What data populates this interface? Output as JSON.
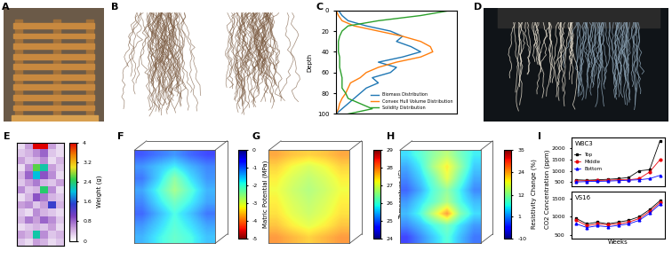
{
  "panel_labels": [
    "A",
    "B",
    "C",
    "D",
    "E",
    "F",
    "G",
    "H",
    "I"
  ],
  "chart_data": [
    {
      "type": "line",
      "ylabel": "Depth",
      "y": [
        0,
        5,
        10,
        15,
        20,
        25,
        30,
        35,
        40,
        45,
        50,
        55,
        60,
        65,
        70,
        75,
        80,
        85,
        90,
        95,
        100
      ],
      "ylim": [
        100,
        0
      ],
      "yticks": [
        0,
        20,
        40,
        60,
        80,
        100
      ],
      "xlim": [
        0,
        1
      ],
      "tick_labels": "y",
      "legend": "lower right",
      "series": [
        {
          "name": "Biomass Distribution",
          "color": "#1f77b4",
          "values": [
            0.02,
            0.05,
            0.1,
            0.25,
            0.45,
            0.55,
            0.5,
            0.62,
            0.7,
            0.55,
            0.35,
            0.5,
            0.45,
            0.3,
            0.35,
            0.25,
            0.2,
            0.15,
            0.1,
            0.05,
            0.0
          ]
        },
        {
          "name": "Convex Hull Volume Distribution",
          "color": "#ff7f0e",
          "values": [
            0.0,
            0.02,
            0.05,
            0.15,
            0.35,
            0.55,
            0.7,
            0.78,
            0.8,
            0.7,
            0.5,
            0.35,
            0.25,
            0.2,
            0.12,
            0.1,
            0.08,
            0.05,
            0.03,
            0.02,
            0.0
          ]
        },
        {
          "name": "Solidity Distribution",
          "color": "#2ca02c",
          "values": [
            0.95,
            0.7,
            0.35,
            0.1,
            0.05,
            0.03,
            0.02,
            0.02,
            0.02,
            0.03,
            0.03,
            0.03,
            0.04,
            0.05,
            0.05,
            0.05,
            0.08,
            0.1,
            0.2,
            0.3,
            0.1
          ]
        }
      ]
    },
    {
      "type": "heatmap",
      "cells": [
        [
          0.2,
          0.5,
          4.0,
          4.0,
          0.5,
          0.2
        ],
        [
          0.3,
          0.4,
          0.6,
          0.8,
          0.3,
          0.2
        ],
        [
          0.5,
          0.3,
          0.4,
          0.6,
          0.2,
          0.4
        ],
        [
          0.2,
          0.6,
          2.6,
          2.2,
          0.5,
          0.3
        ],
        [
          0.4,
          0.8,
          2.0,
          0.9,
          0.6,
          0.2
        ],
        [
          0.3,
          0.5,
          0.7,
          0.4,
          0.3,
          0.5
        ],
        [
          0.6,
          0.3,
          0.4,
          2.4,
          0.6,
          0.2
        ],
        [
          0.2,
          0.4,
          0.9,
          0.7,
          0.4,
          0.3
        ],
        [
          0.5,
          0.6,
          0.3,
          0.5,
          1.4,
          0.4
        ],
        [
          0.3,
          0.2,
          0.6,
          0.4,
          0.3,
          0.2
        ],
        [
          0.4,
          0.7,
          0.5,
          0.8,
          0.6,
          0.3
        ],
        [
          0.2,
          0.3,
          0.4,
          0.3,
          0.5,
          0.2
        ],
        [
          0.5,
          0.4,
          2.2,
          0.6,
          0.3,
          0.4
        ],
        [
          0.3,
          0.2,
          0.5,
          0.4,
          0.2,
          0.3
        ]
      ],
      "colorbar": {
        "label": "Weight (g)",
        "range": [
          0,
          4
        ],
        "ticks": [
          0,
          0.8,
          1.6,
          2.4,
          3.2,
          4
        ]
      }
    },
    {
      "type": "heatmap",
      "cells": [
        [
          -0.8,
          -1.0,
          -1.2,
          -0.9,
          -0.7
        ],
        [
          -1.2,
          -1.5,
          -1.8,
          -1.4,
          -1.1
        ],
        [
          -1.0,
          -1.6,
          -2.4,
          -1.7,
          -1.2
        ],
        [
          -1.3,
          -1.9,
          -2.6,
          -2.0,
          -1.4
        ],
        [
          -1.1,
          -1.7,
          -2.2,
          -1.8,
          -1.3
        ],
        [
          -0.9,
          -1.4,
          -1.9,
          -1.5,
          -1.0
        ],
        [
          -1.2,
          -1.6,
          -2.0,
          -1.7,
          -1.3
        ],
        [
          -1.4,
          -1.8,
          -2.1,
          -1.9,
          -1.5
        ]
      ],
      "colorbar": {
        "label": "Matric Potential (MPa)",
        "range": [
          -5,
          0
        ],
        "ticks": [
          0,
          -1,
          -2,
          -3,
          -4,
          -5
        ]
      }
    },
    {
      "type": "heatmap",
      "cells": [
        [
          27.8,
          27.6,
          27.5,
          27.6,
          27.8
        ],
        [
          27.5,
          27.2,
          27.0,
          27.2,
          27.5
        ],
        [
          27.3,
          27.0,
          26.8,
          27.0,
          27.3
        ],
        [
          27.2,
          26.9,
          26.7,
          26.9,
          27.2
        ],
        [
          27.3,
          27.0,
          26.8,
          27.0,
          27.3
        ],
        [
          27.4,
          27.1,
          26.9,
          27.1,
          27.4
        ],
        [
          27.6,
          27.3,
          27.1,
          27.3,
          27.6
        ],
        [
          27.9,
          27.7,
          27.5,
          27.7,
          27.9
        ]
      ],
      "colorbar": {
        "label": "Temperature (C)",
        "range": [
          24,
          29
        ],
        "ticks": [
          24,
          25,
          26,
          27,
          28,
          29
        ]
      }
    },
    {
      "type": "heatmap",
      "cells": [
        [
          5,
          8,
          12,
          15,
          10,
          6
        ],
        [
          2,
          6,
          14,
          20,
          12,
          4
        ],
        [
          0,
          4,
          10,
          18,
          9,
          2
        ],
        [
          -2,
          2,
          8,
          12,
          6,
          0
        ],
        [
          1,
          5,
          9,
          14,
          7,
          3
        ],
        [
          3,
          7,
          16,
          25,
          11,
          5
        ],
        [
          0,
          3,
          7,
          10,
          5,
          1
        ],
        [
          -4,
          0,
          4,
          8,
          3,
          -1
        ]
      ],
      "colorbar": {
        "label": "Resistivity Change (%)",
        "range": [
          -10,
          35
        ],
        "ticks": [
          -10,
          1,
          12,
          24,
          35
        ]
      }
    },
    {
      "type": "line",
      "title": "WBC3",
      "ylabel": "CO2 Concentration (ppm)",
      "x": [
        1,
        2,
        3,
        4,
        5,
        6,
        7,
        8,
        9
      ],
      "xlim": [
        0.5,
        9.5
      ],
      "ylim": [
        300,
        2500
      ],
      "yticks": [
        500,
        1000,
        1500,
        2000
      ],
      "tick_labels": "y",
      "legend": "center left",
      "series": [
        {
          "name": "Top",
          "color": "#000000",
          "marker": "square",
          "values": [
            600,
            580,
            600,
            620,
            650,
            700,
            1000,
            1050,
            2350
          ]
        },
        {
          "name": "Middle",
          "color": "#e8000b",
          "marker": "circle",
          "values": [
            550,
            560,
            570,
            580,
            600,
            600,
            650,
            950,
            1500
          ]
        },
        {
          "name": "Bottom",
          "color": "#0000ff",
          "marker": "triangle",
          "values": [
            500,
            520,
            530,
            540,
            560,
            580,
            600,
            650,
            800
          ]
        }
      ]
    },
    {
      "type": "line",
      "title": "VS16",
      "xlabel": "Weeks",
      "x": [
        1,
        2,
        3,
        4,
        5,
        6,
        7,
        8,
        9
      ],
      "xlim": [
        0.5,
        9.5
      ],
      "ylim": [
        400,
        1700
      ],
      "yticks": [
        500,
        1000,
        1500
      ],
      "tick_labels": "y",
      "series": [
        {
          "name": "Top",
          "color": "#000000",
          "marker": "square",
          "values": [
            950,
            800,
            850,
            800,
            850,
            900,
            1000,
            1200,
            1450
          ]
        },
        {
          "name": "Middle",
          "color": "#e8000b",
          "marker": "circle",
          "values": [
            900,
            750,
            800,
            780,
            800,
            850,
            950,
            1150,
            1400
          ]
        },
        {
          "name": "Bottom",
          "color": "#0000ff",
          "marker": "triangle",
          "values": [
            800,
            700,
            750,
            720,
            760,
            800,
            900,
            1100,
            1350
          ]
        }
      ]
    }
  ]
}
